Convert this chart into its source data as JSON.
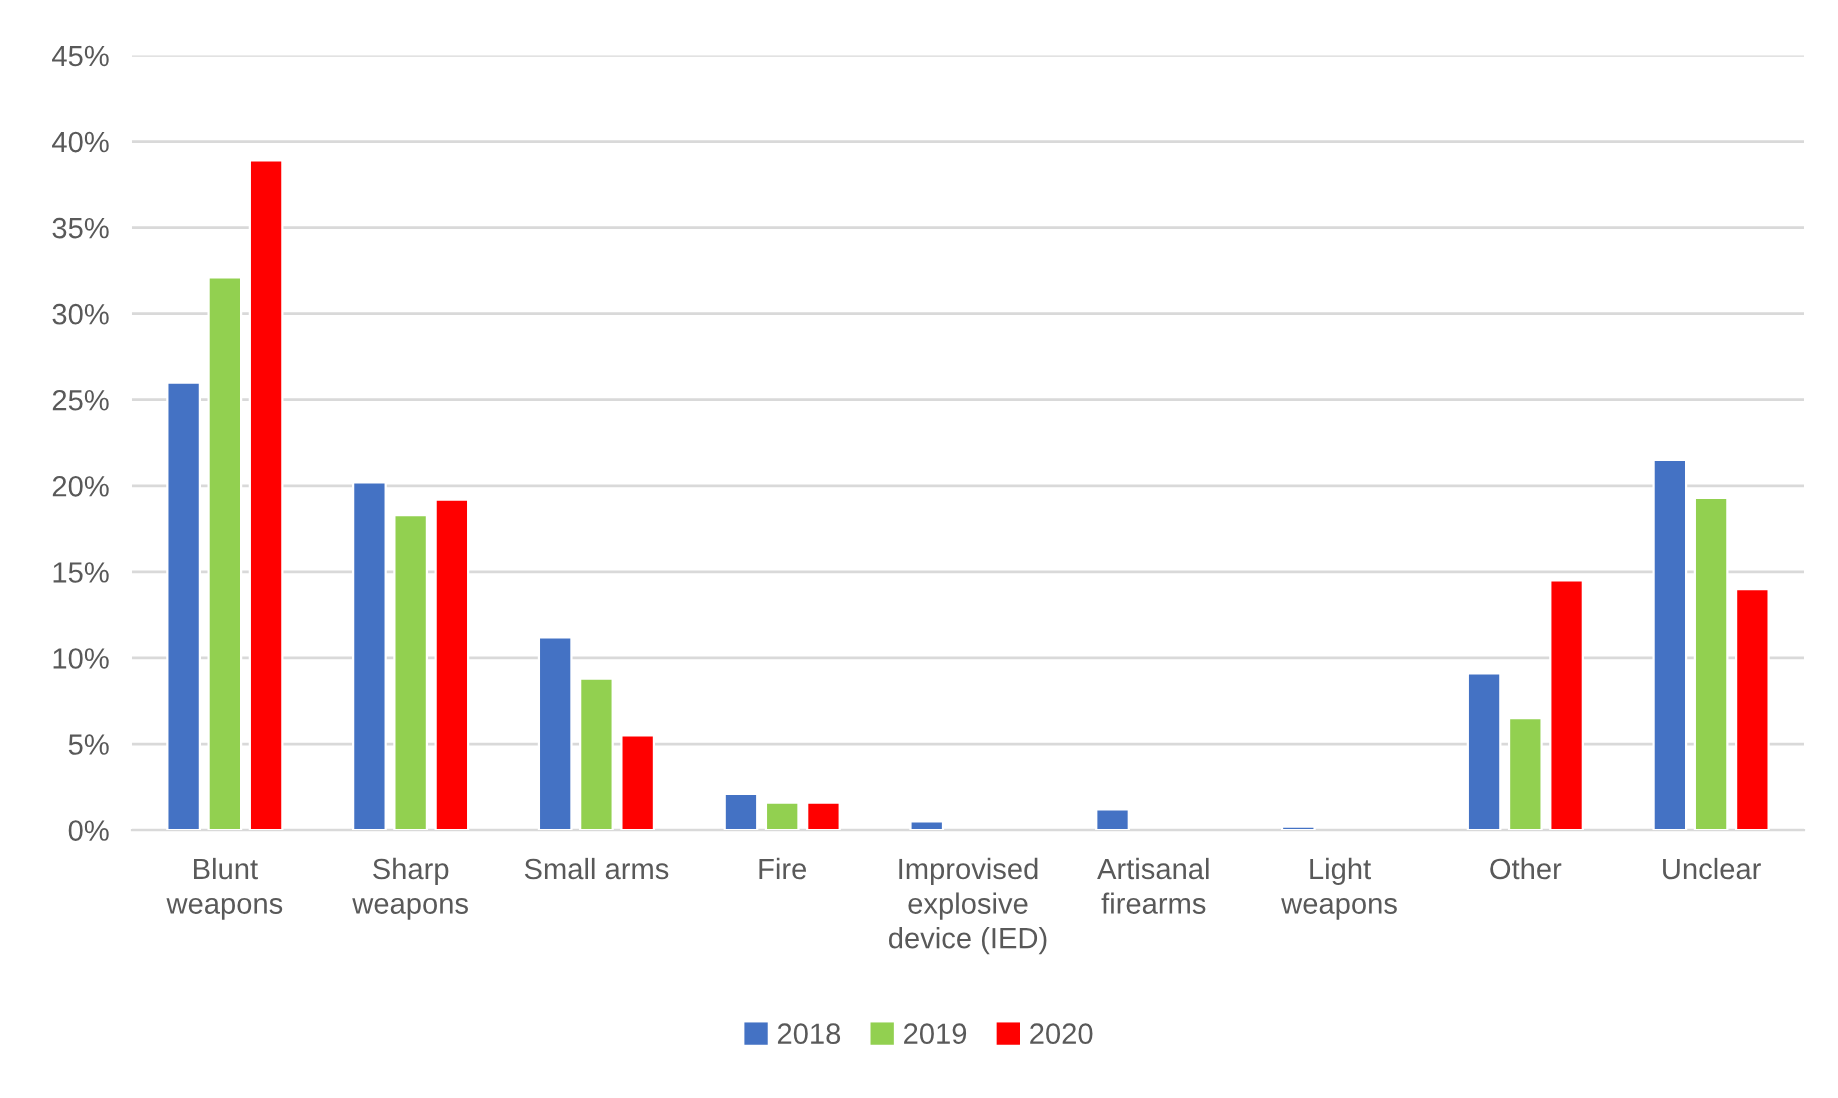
{
  "chart_data": {
    "type": "bar",
    "categories": [
      "Blunt weapons",
      "Sharp weapons",
      "Small arms",
      "Fire",
      "Improvised explosive device (IED)",
      "Artisanal firearms",
      "Light weapons",
      "Other",
      "Unclear"
    ],
    "series": [
      {
        "name": "2018",
        "color": "#4472c4",
        "values": [
          26.0,
          20.2,
          11.2,
          2.1,
          0.5,
          1.2,
          0.2,
          9.1,
          21.5
        ]
      },
      {
        "name": "2019",
        "color": "#92d050",
        "values": [
          32.1,
          18.3,
          8.8,
          1.6,
          null,
          null,
          null,
          6.5,
          19.3
        ]
      },
      {
        "name": "2020",
        "color": "#ff0000",
        "values": [
          38.9,
          19.2,
          5.5,
          1.6,
          null,
          null,
          null,
          14.5,
          14.0
        ]
      }
    ],
    "ylim": [
      0,
      45
    ],
    "yticks": [
      {
        "value": 0,
        "label": "0%"
      },
      {
        "value": 5,
        "label": "5%"
      },
      {
        "value": 10,
        "label": "10%"
      },
      {
        "value": 15,
        "label": "15%"
      },
      {
        "value": 20,
        "label": "20%"
      },
      {
        "value": 25,
        "label": "25%"
      },
      {
        "value": 30,
        "label": "30%"
      },
      {
        "value": 35,
        "label": "35%"
      },
      {
        "value": 40,
        "label": "40%"
      },
      {
        "value": 45,
        "label": "45%"
      }
    ],
    "grid": "y",
    "legend": "bottom"
  }
}
